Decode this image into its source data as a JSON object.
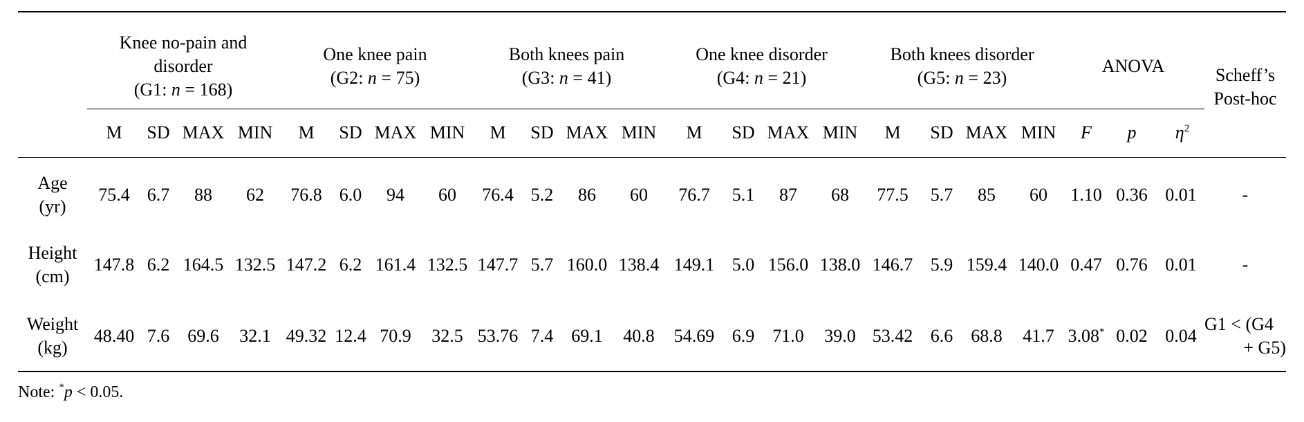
{
  "groups": [
    {
      "lines": [
        "Knee no-pain and",
        "disorder"
      ],
      "code": "G1",
      "n": "168"
    },
    {
      "lines": [
        "One knee pain"
      ],
      "code": "G2",
      "n": "75"
    },
    {
      "lines": [
        "Both knees pain"
      ],
      "code": "G3",
      "n": "41"
    },
    {
      "lines": [
        "One knee disorder"
      ],
      "code": "G4",
      "n": "21"
    },
    {
      "lines": [
        "Both knees disorder"
      ],
      "code": "G5",
      "n": "23"
    }
  ],
  "anova_header": "ANOVA",
  "posthoc_header": [
    "Scheff’s",
    "Post-hoc"
  ],
  "stat_headers": [
    "M",
    "SD",
    "MAX",
    "MIN"
  ],
  "anova_subheaders": {
    "f": "F",
    "p": "p",
    "eta": "η",
    "eta_sup": "2"
  },
  "rows": [
    {
      "label": [
        "Age",
        "(yr)"
      ],
      "values": [
        "75.4",
        "6.7",
        "88",
        "62",
        "76.8",
        "6.0",
        "94",
        "60",
        "76.4",
        "5.2",
        "86",
        "60",
        "76.7",
        "5.1",
        "87",
        "68",
        "77.5",
        "5.7",
        "85",
        "60"
      ],
      "F": "1.10",
      "F_sup": "",
      "p": "0.36",
      "eta2": "0.01",
      "posthoc": [
        "-"
      ]
    },
    {
      "label": [
        "Height",
        "(cm)"
      ],
      "values": [
        "147.8",
        "6.2",
        "164.5",
        "132.5",
        "147.2",
        "6.2",
        "161.4",
        "132.5",
        "147.7",
        "5.7",
        "160.0",
        "138.4",
        "149.1",
        "5.0",
        "156.0",
        "138.0",
        "146.7",
        "5.9",
        "159.4",
        "140.0"
      ],
      "F": "0.47",
      "F_sup": "",
      "p": "0.76",
      "eta2": "0.01",
      "posthoc": [
        "-"
      ]
    },
    {
      "label": [
        "Weight",
        "(kg)"
      ],
      "values": [
        "48.40",
        "7.6",
        "69.6",
        "32.1",
        "49.32",
        "12.4",
        "70.9",
        "32.5",
        "53.76",
        "7.4",
        "69.1",
        "40.8",
        "54.69",
        "6.9",
        "71.0",
        "39.0",
        "53.42",
        "6.6",
        "68.8",
        "41.7"
      ],
      "F": "3.08",
      "F_sup": "*",
      "p": "0.02",
      "eta2": "0.04",
      "posthoc": [
        "G1 < (G4",
        "+ G5)"
      ]
    }
  ],
  "note": {
    "prefix": "Note: ",
    "sup": "*",
    "var": "p",
    "rest": " < 0.05."
  }
}
